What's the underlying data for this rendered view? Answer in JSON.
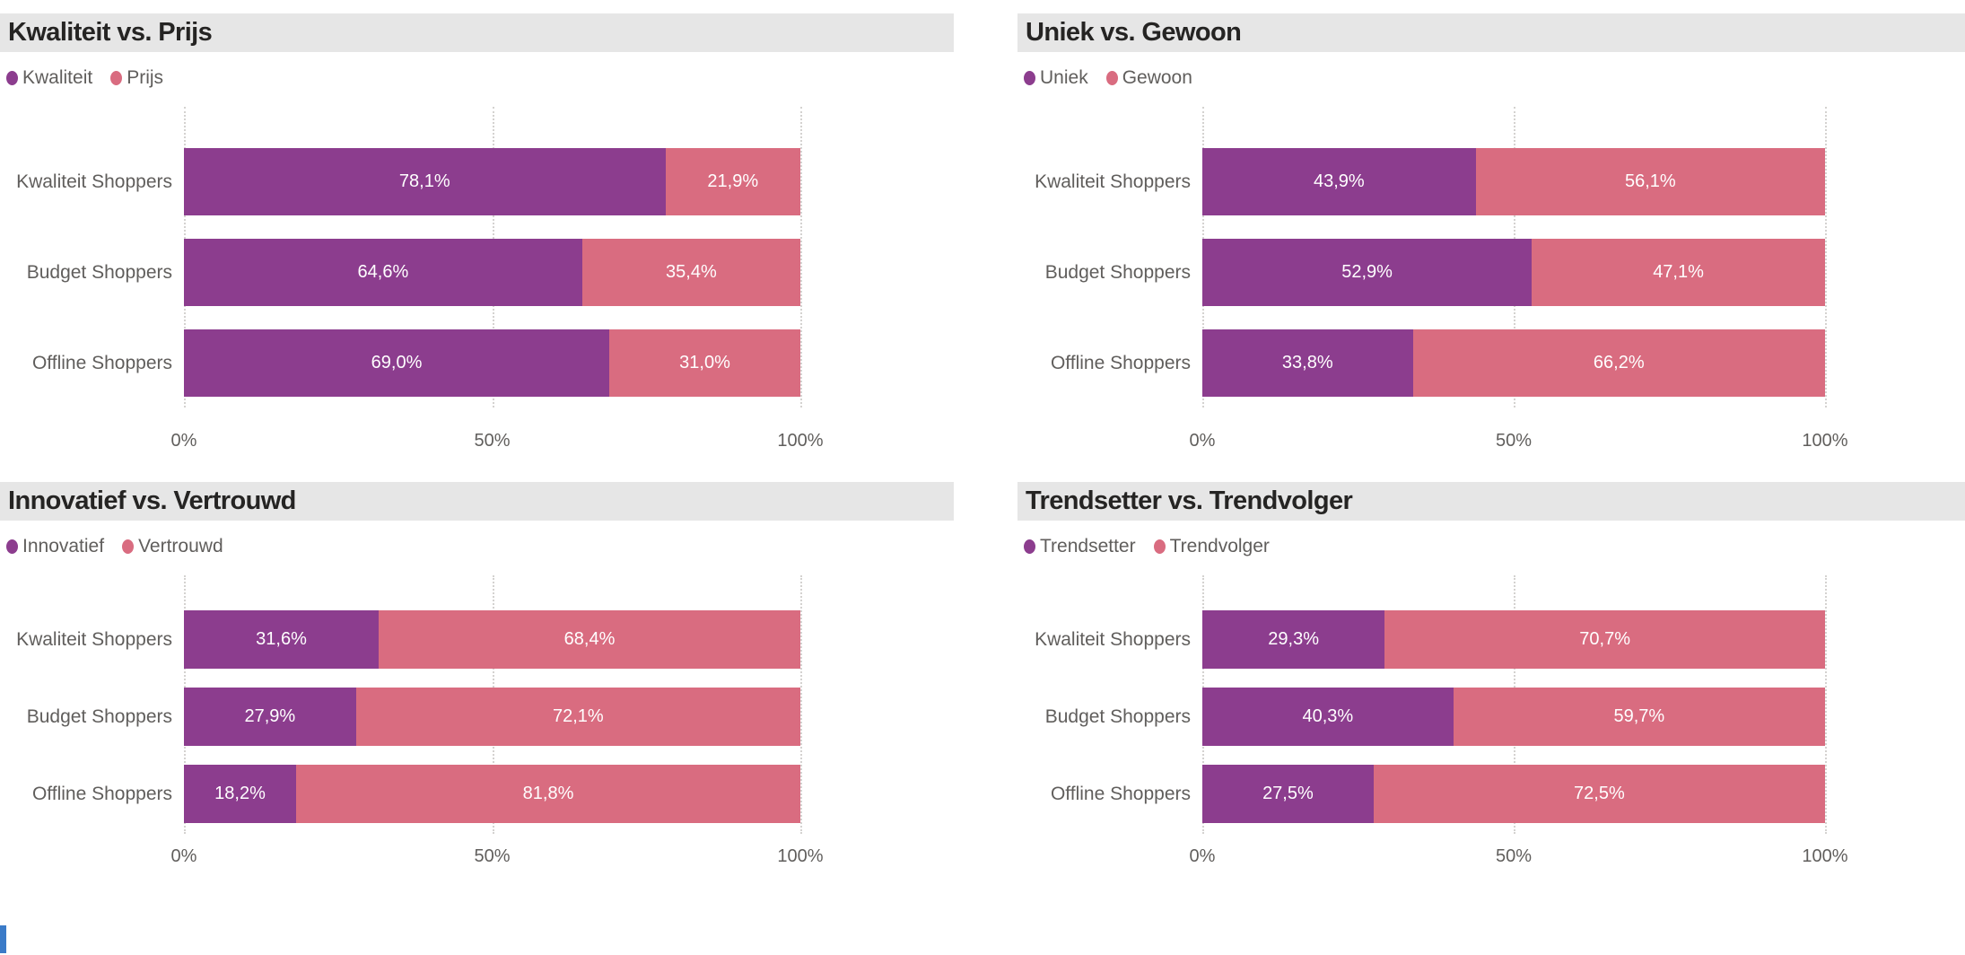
{
  "page": {
    "background": "#FFFFFF",
    "title_bar_background": "#E6E6E6",
    "title_text_color": "#252423",
    "label_text_color": "#605E5C",
    "data_label_color": "#FFFFFF",
    "gridline_color": "#D4D2D0",
    "accent_blue": "#3B7BC8"
  },
  "chart_data": [
    {
      "type": "bar",
      "orientation": "horizontal",
      "stacked": true,
      "title": "Kwaliteit vs. Prijs",
      "categories": [
        "Kwaliteit Shoppers",
        "Budget Shoppers",
        "Offline Shoppers"
      ],
      "series": [
        {
          "name": "Kwaliteit",
          "color": "#8C3D8E",
          "values": [
            78.1,
            64.6,
            69.0
          ],
          "labels": [
            "78,1%",
            "64,6%",
            "69,0%"
          ]
        },
        {
          "name": "Prijs",
          "color": "#D96C80",
          "values": [
            21.9,
            35.4,
            31.0
          ],
          "labels": [
            "21,9%",
            "35,4%",
            "31,0%"
          ]
        }
      ],
      "x_ticks": [
        "0%",
        "50%",
        "100%"
      ],
      "xlim": [
        0,
        100
      ],
      "legend_position": "top",
      "grid": "dotted-vertical"
    },
    {
      "type": "bar",
      "orientation": "horizontal",
      "stacked": true,
      "title": "Uniek vs. Gewoon",
      "categories": [
        "Kwaliteit Shoppers",
        "Budget Shoppers",
        "Offline Shoppers"
      ],
      "series": [
        {
          "name": "Uniek",
          "color": "#8C3D8E",
          "values": [
            43.9,
            52.9,
            33.8
          ],
          "labels": [
            "43,9%",
            "52,9%",
            "33,8%"
          ]
        },
        {
          "name": "Gewoon",
          "color": "#D96C80",
          "values": [
            56.1,
            47.1,
            66.2
          ],
          "labels": [
            "56,1%",
            "47,1%",
            "66,2%"
          ]
        }
      ],
      "x_ticks": [
        "0%",
        "50%",
        "100%"
      ],
      "xlim": [
        0,
        100
      ],
      "legend_position": "top",
      "grid": "dotted-vertical"
    },
    {
      "type": "bar",
      "orientation": "horizontal",
      "stacked": true,
      "title": "Innovatief vs. Vertrouwd",
      "categories": [
        "Kwaliteit Shoppers",
        "Budget Shoppers",
        "Offline Shoppers"
      ],
      "series": [
        {
          "name": "Innovatief",
          "color": "#8C3D8E",
          "values": [
            31.6,
            27.9,
            18.2
          ],
          "labels": [
            "31,6%",
            "27,9%",
            "18,2%"
          ]
        },
        {
          "name": "Vertrouwd",
          "color": "#D96C80",
          "values": [
            68.4,
            72.1,
            81.8
          ],
          "labels": [
            "68,4%",
            "72,1%",
            "81,8%"
          ]
        }
      ],
      "x_ticks": [
        "0%",
        "50%",
        "100%"
      ],
      "xlim": [
        0,
        100
      ],
      "legend_position": "top",
      "grid": "dotted-vertical"
    },
    {
      "type": "bar",
      "orientation": "horizontal",
      "stacked": true,
      "title": "Trendsetter vs. Trendvolger",
      "categories": [
        "Kwaliteit Shoppers",
        "Budget Shoppers",
        "Offline Shoppers"
      ],
      "series": [
        {
          "name": "Trendsetter",
          "color": "#8C3D8E",
          "values": [
            29.3,
            40.3,
            27.5
          ],
          "labels": [
            "29,3%",
            "40,3%",
            "27,5%"
          ]
        },
        {
          "name": "Trendvolger",
          "color": "#D96C80",
          "values": [
            70.7,
            59.7,
            72.5
          ],
          "labels": [
            "70,7%",
            "59,7%",
            "72,5%"
          ]
        }
      ],
      "x_ticks": [
        "0%",
        "50%",
        "100%"
      ],
      "xlim": [
        0,
        100
      ],
      "legend_position": "top",
      "grid": "dotted-vertical"
    }
  ]
}
